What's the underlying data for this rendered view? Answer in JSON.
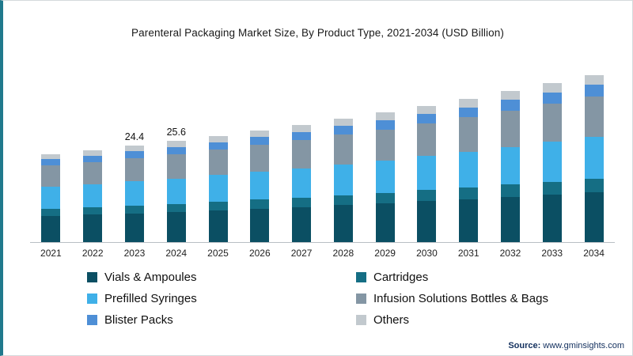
{
  "chart_data": {
    "type": "bar",
    "stacked": true,
    "title": "Parenteral Packaging Market Size, By Product Type, 2021-2034 (USD Billion)",
    "xlabel": "",
    "ylabel": "USD Billion",
    "ylim": [
      0,
      46
    ],
    "grid": false,
    "legend_position": "bottom",
    "categories": [
      "2021",
      "2022",
      "2023",
      "2024",
      "2025",
      "2026",
      "2027",
      "2028",
      "2029",
      "2030",
      "2031",
      "2032",
      "2033",
      "2034"
    ],
    "series": [
      {
        "name": "Vials & Ampoules",
        "color": "#0b4f63",
        "values": [
          6.7,
          7.0,
          7.3,
          7.7,
          8.1,
          8.5,
          8.9,
          9.4,
          9.8,
          10.4,
          10.9,
          11.5,
          12.1,
          12.7
        ]
      },
      {
        "name": "Cartridges",
        "color": "#156e84",
        "values": [
          1.8,
          1.9,
          2.0,
          2.0,
          2.2,
          2.3,
          2.4,
          2.5,
          2.6,
          2.8,
          2.9,
          3.1,
          3.2,
          3.4
        ]
      },
      {
        "name": "Prefilled Syringes",
        "color": "#3fb0e8",
        "values": [
          5.6,
          5.8,
          6.1,
          6.4,
          6.7,
          7.0,
          7.4,
          7.8,
          8.2,
          8.6,
          9.1,
          9.5,
          10.1,
          10.6
        ]
      },
      {
        "name": "Infusion Solutions Bottles & Bags",
        "color": "#8496a4",
        "values": [
          5.3,
          5.6,
          5.9,
          6.2,
          6.4,
          6.8,
          7.1,
          7.5,
          7.9,
          8.3,
          8.7,
          9.2,
          9.6,
          10.1
        ]
      },
      {
        "name": "Blister Packs",
        "color": "#4e8fd6",
        "values": [
          1.6,
          1.6,
          1.7,
          1.8,
          1.9,
          2.0,
          2.1,
          2.2,
          2.3,
          2.4,
          2.5,
          2.7,
          2.8,
          3.0
        ]
      },
      {
        "name": "Others",
        "color": "#c2c9ce",
        "values": [
          1.3,
          1.4,
          1.4,
          1.5,
          1.6,
          1.6,
          1.8,
          1.8,
          2.0,
          2.0,
          2.2,
          2.2,
          2.4,
          2.5
        ]
      }
    ],
    "totals": [
      22.3,
      23.3,
      24.4,
      25.6,
      26.9,
      28.2,
      29.7,
      31.2,
      32.8,
      34.5,
      36.3,
      38.2,
      40.2,
      42.3
    ],
    "annotations": [
      {
        "category": "2023",
        "text": "24.4"
      },
      {
        "category": "2024",
        "text": "25.6"
      }
    ]
  },
  "source": {
    "prefix": "Source:",
    "url": "www.gminsights.com"
  },
  "accents": {
    "left_stripe": "#20798c",
    "border": "#d5d9dc"
  }
}
